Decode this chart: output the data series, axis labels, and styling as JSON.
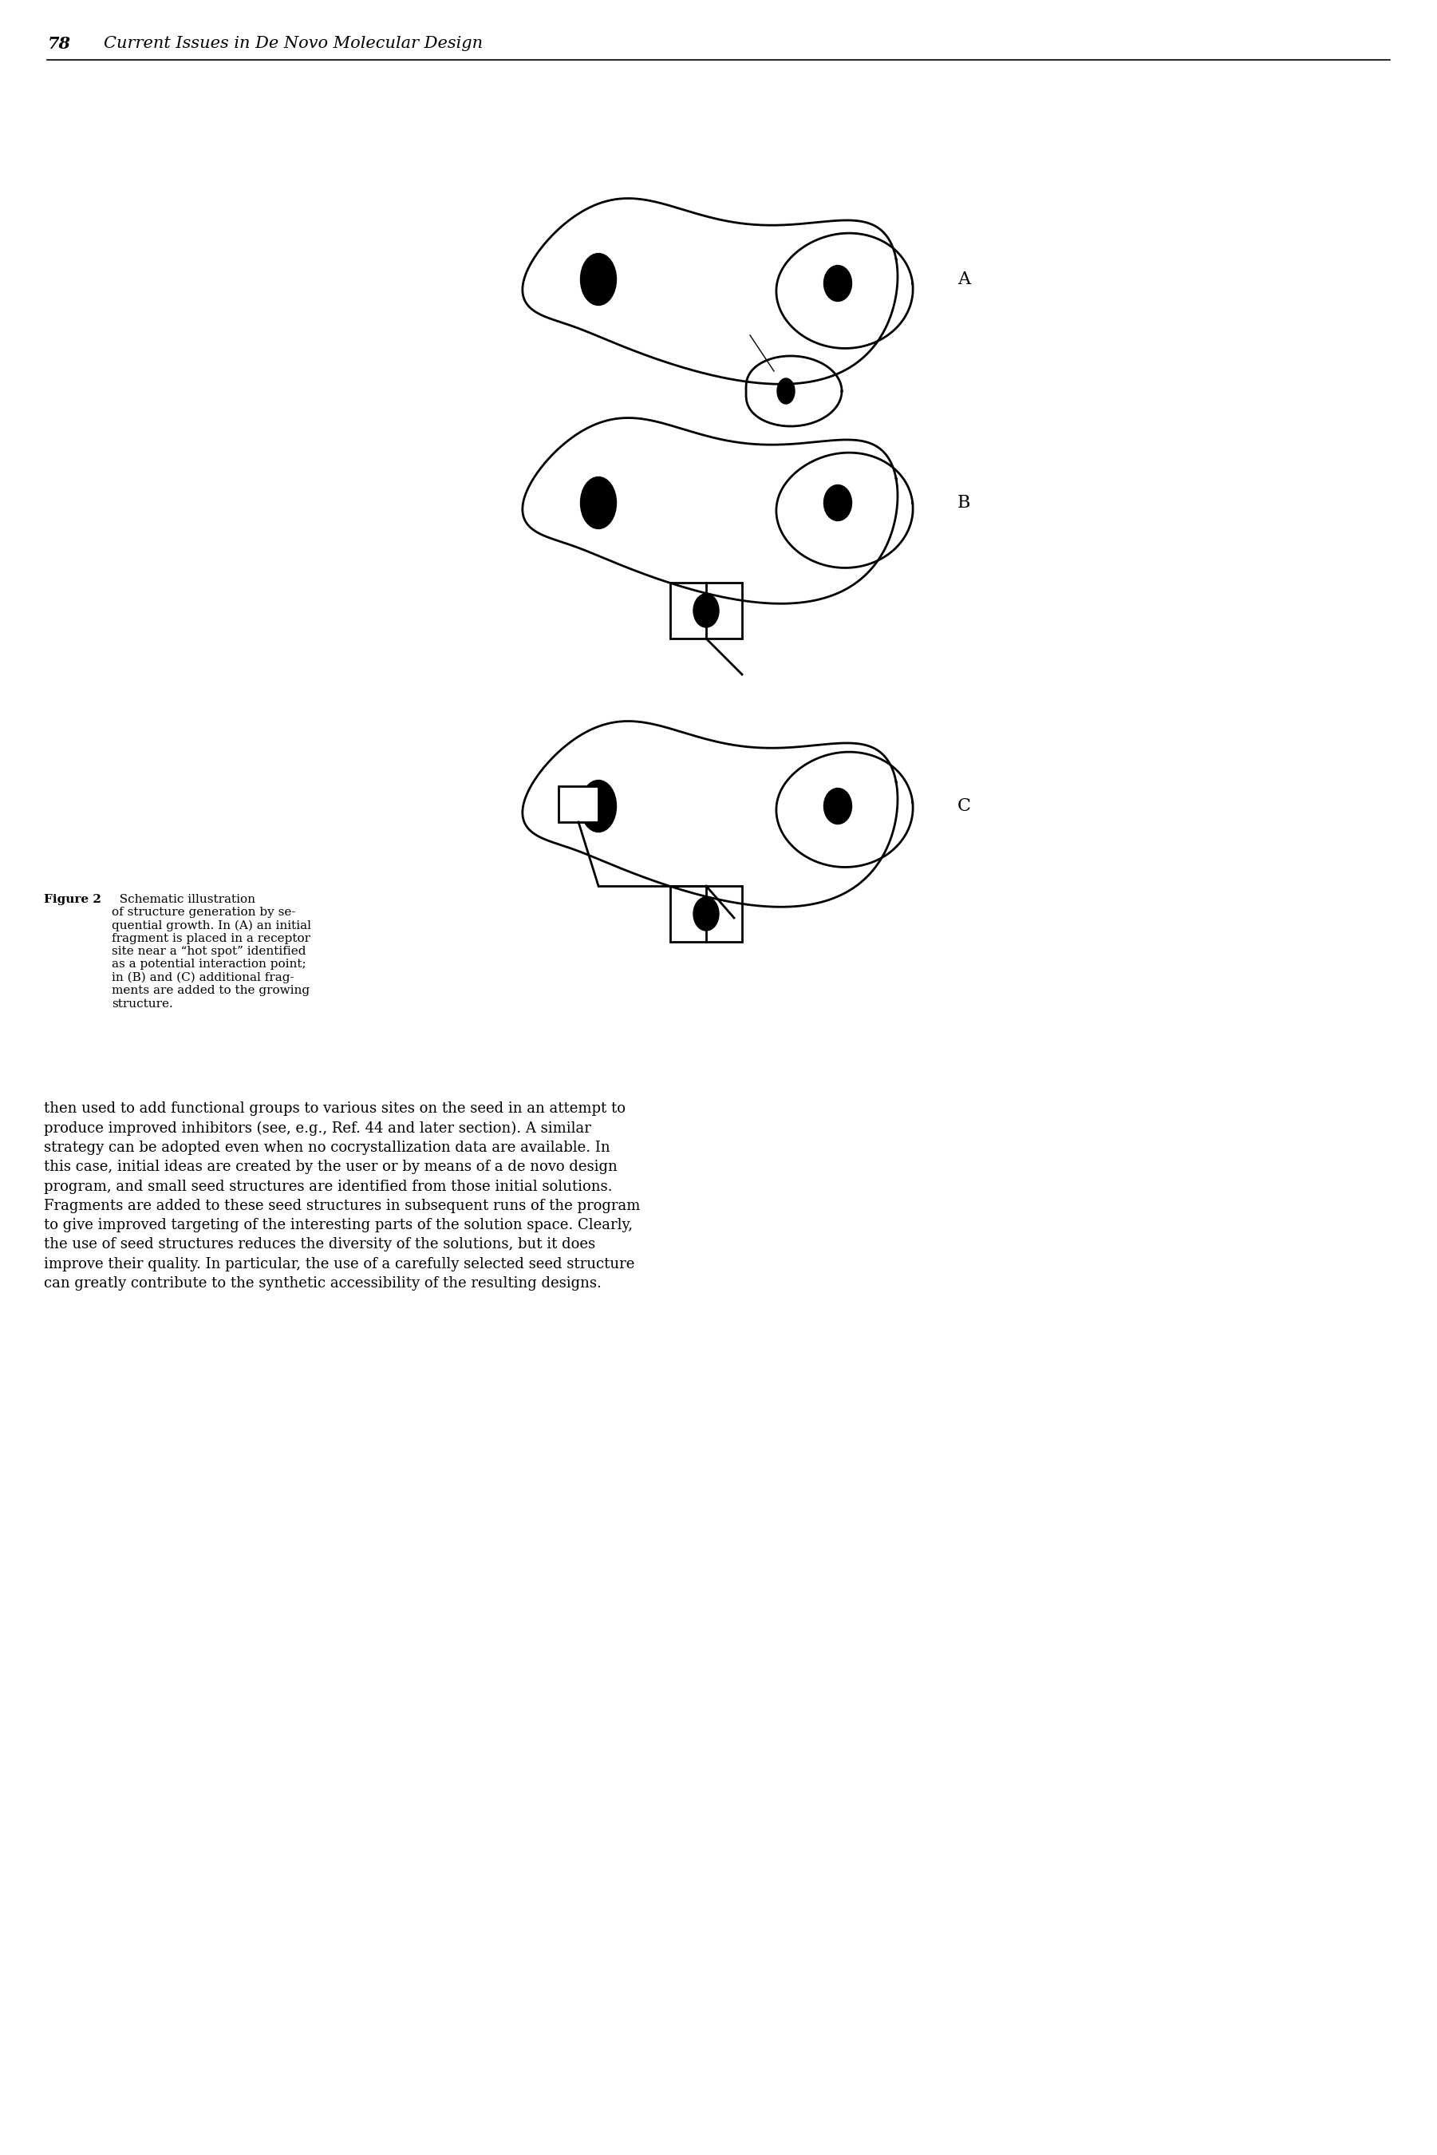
{
  "header_number": "78",
  "header_text": "Current Issues in De Novo Molecular Design",
  "header_fontsize": 15,
  "figure_label_fontsize": 14,
  "caption_bold": "Figure 2",
  "caption_normal": "  Schematic illustration\nof structure generation by se-\nquential growth. In (A) an initial\nfragment is placed in a receptor\nsite near a “hot spot” identified\nas a potential interaction point;\nin (B) and (C) additional frag-\nments are added to the growing\nstructure.",
  "body_text": "then used to add functional groups to various sites on the seed in an attempt to\nproduce improved inhibitors (see, e.g., Ref. 44 and later section). A similar\nstrategy can be adopted even when no cocrystallization data are available. In\nthis case, initial ideas are created by the user or by means of a de novo design\nprogram, and small seed structures are identified from those initial solutions.\nFragments are added to these seed structures in subsequent runs of the program\nto give improved targeting of the interesting parts of the solution space. Clearly,\nthe use of seed structures reduces the diversity of the solutions, but it does\nimprove their quality. In particular, the use of a carefully selected seed structure\ncan greatly contribute to the synthetic accessibility of the resulting designs.",
  "bg_color": "#ffffff",
  "line_color": "#000000"
}
